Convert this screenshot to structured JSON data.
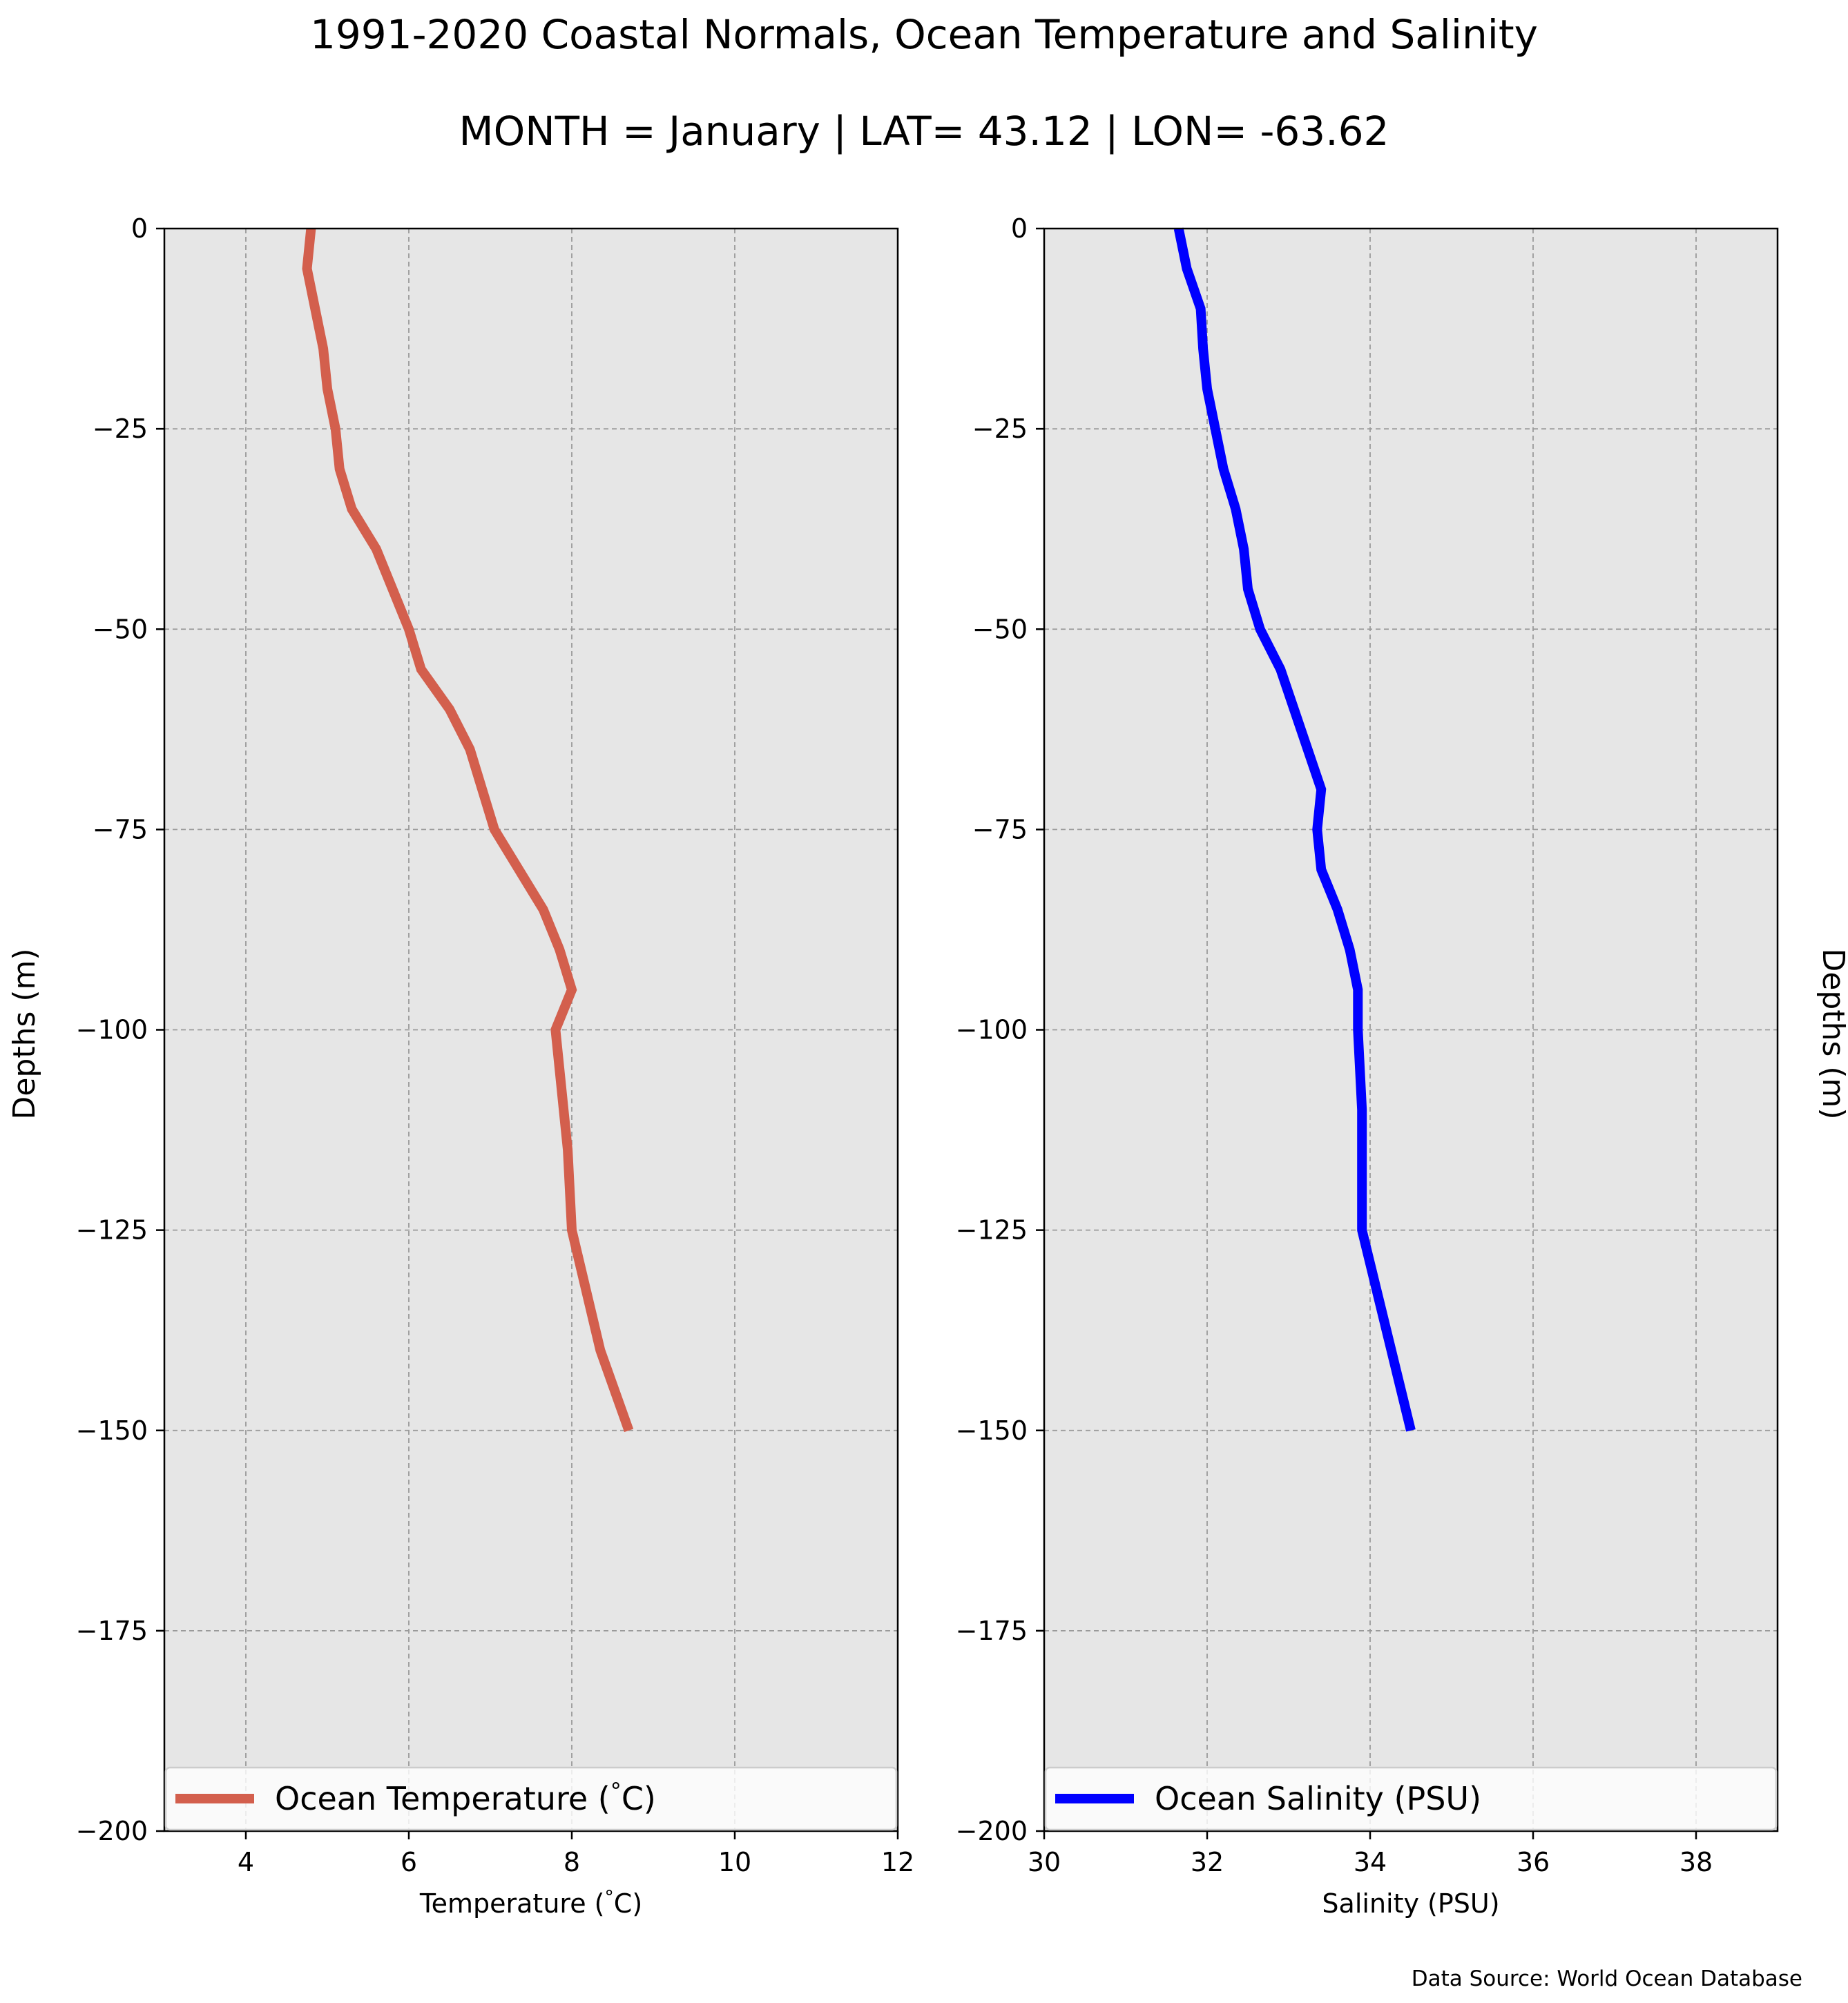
{
  "title": "1991-2020 Coastal Normals, Ocean Temperature and Salinity",
  "subtitle": "MONTH = January | LAT= 43.12 | LON= -63.62",
  "source": "Data Source: World Ocean Database",
  "chart_data": [
    {
      "type": "line",
      "series": [
        {
          "name": "Ocean Temperature ($^\\circ$C)",
          "color": "#d35f4d",
          "x": [
            4.8,
            4.75,
            4.85,
            4.95,
            5.0,
            5.1,
            5.15,
            5.3,
            5.6,
            5.8,
            6.0,
            6.15,
            6.5,
            6.75,
            7.05,
            7.35,
            7.65,
            7.85,
            8.0,
            7.8,
            7.85,
            7.9,
            7.95,
            8.0,
            8.35,
            8.7
          ],
          "y": [
            0,
            -5,
            -10,
            -15,
            -20,
            -25,
            -30,
            -35,
            -40,
            -45,
            -50,
            -55,
            -60,
            -65,
            -75,
            -80,
            -85,
            -90,
            -95,
            -100,
            -105,
            -110,
            -115,
            -125,
            -140,
            -150
          ]
        }
      ],
      "xlabel": "Temperature ($^\\circ$C)",
      "ylabel": "Depths (m)",
      "xlim": [
        3,
        12
      ],
      "ylim": [
        -200,
        0
      ],
      "xticks": [
        "4",
        "6",
        "8",
        "10",
        "12"
      ],
      "yticks": [
        "0",
        "−25",
        "−50",
        "−75",
        "−100",
        "−125",
        "−150",
        "−175",
        "−200"
      ],
      "grid": true,
      "legend": "bottom",
      "legend_label": "Ocean Temperature ($^\\circ$C)"
    },
    {
      "type": "line",
      "series": [
        {
          "name": "Ocean Salinity (PSU)",
          "color": "#0000ff",
          "x": [
            31.65,
            31.75,
            31.92,
            31.95,
            32.0,
            32.1,
            32.2,
            32.35,
            32.45,
            32.5,
            32.65,
            32.9,
            33.4,
            33.35,
            33.4,
            33.6,
            33.75,
            33.85,
            33.85,
            33.9,
            33.9,
            34.5
          ],
          "y": [
            0,
            -5,
            -10,
            -15,
            -20,
            -25,
            -30,
            -35,
            -40,
            -45,
            -50,
            -55,
            -70,
            -75,
            -80,
            -85,
            -90,
            -95,
            -100,
            -110,
            -125,
            -150
          ]
        }
      ],
      "xlabel": "Salinity (PSU)",
      "ylabel": "Depths (m)",
      "xlim": [
        30,
        39
      ],
      "ylim": [
        -200,
        0
      ],
      "xticks": [
        "30",
        "32",
        "34",
        "36",
        "38"
      ],
      "yticks": [
        "0",
        "−25",
        "−50",
        "−75",
        "−100",
        "−125",
        "−150",
        "−175",
        "−200"
      ],
      "grid": true,
      "legend": "bottom",
      "legend_label": "Ocean Salinity (PSU)"
    }
  ]
}
